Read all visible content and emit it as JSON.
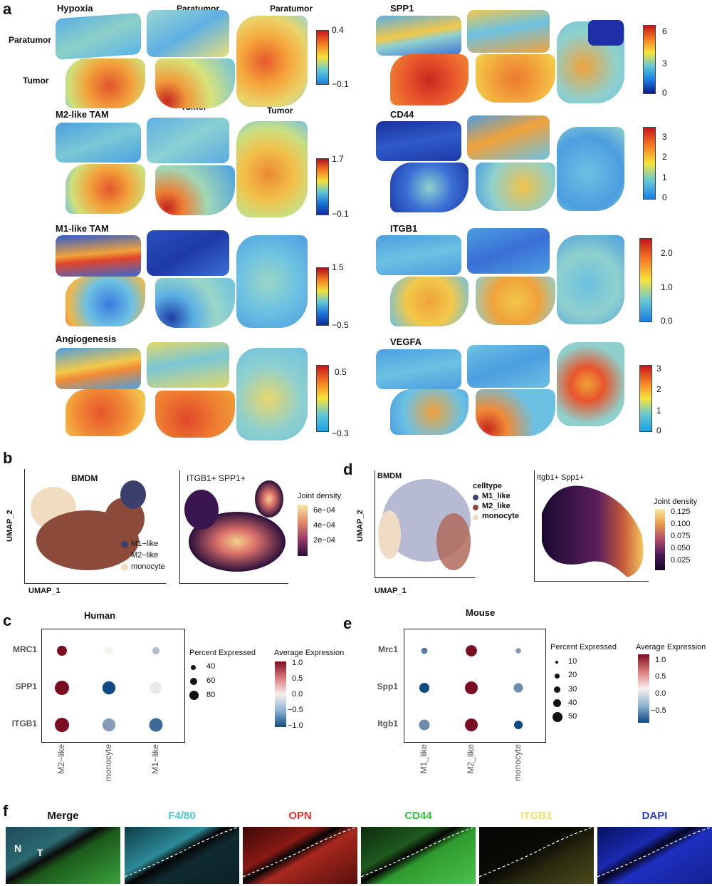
{
  "figure": {
    "panel_labels": {
      "a": "a",
      "b": "b",
      "c": "c",
      "d": "d",
      "e": "e",
      "f": "f"
    },
    "panel_a": {
      "region_labels": {
        "paratumor_left": "Paratumor",
        "paratumor_mid": "Paratumor",
        "paratumor_right": "Paratumor",
        "tumor_left": "Tumor",
        "tumor_mid": "Tumor",
        "tumor_right": "Tumor"
      },
      "left_maps": [
        {
          "title": "Hypoxia",
          "ticks": [
            "0.4",
            "−0.1"
          ]
        },
        {
          "title": "M2-like TAM",
          "ticks": [
            "1.7",
            "−0.1"
          ]
        },
        {
          "title": "M1-like TAM",
          "ticks": [
            "1.5",
            "−0.5"
          ]
        },
        {
          "title": "Angiogenesis",
          "ticks": [
            "0.5",
            "−0.3"
          ]
        }
      ],
      "right_maps": [
        {
          "title": "SPP1",
          "ticks": [
            "6",
            "3",
            "0"
          ]
        },
        {
          "title": "CD44",
          "ticks": [
            "3",
            "2",
            "1",
            "0"
          ]
        },
        {
          "title": "ITGB1",
          "ticks": [
            "2.0",
            "1.0",
            "0.0"
          ]
        },
        {
          "title": "VEGFA",
          "ticks": [
            "3",
            "2",
            "1",
            "0"
          ]
        }
      ]
    },
    "panel_b": {
      "umap_title": "BMDM",
      "x_label": "UMAP_1",
      "y_label": "UMAP_2",
      "legend": [
        "M1−like",
        "M2−like",
        "monocyte"
      ],
      "legend_colors": [
        "#3c3f6b",
        "#8b4a3a",
        "#f2dcc0"
      ],
      "density_title": "ITGB1+ SPP1+",
      "density_legend_title": "Joint density",
      "density_ticks": [
        "6e−04",
        "4e−04",
        "2e−04"
      ]
    },
    "panel_d": {
      "umap_title": "BMDM",
      "legend_title": "celltype",
      "x_label": "UMAP_1",
      "y_label": "UMAP_2",
      "legend": [
        "M1_like",
        "M2_like",
        "monocyte"
      ],
      "density_title": "Itgb1+ Spp1+",
      "density_legend_title": "Joint density",
      "density_ticks": [
        "0.125",
        "0.100",
        "0.075",
        "0.050",
        "0.025"
      ]
    },
    "panel_c": {
      "title": "Human",
      "pct_title": "Percent Expressed",
      "pct_ticks": [
        "40",
        "60",
        "80"
      ],
      "avg_title": "Average Expression",
      "avg_ticks": [
        "1.0",
        "0.5",
        "0.0",
        "−0.5",
        "−1.0"
      ]
    },
    "panel_e": {
      "title": "Mouse",
      "pct_title": "Percent Expressed",
      "pct_ticks": [
        "10",
        "20",
        "30",
        "40",
        "50"
      ],
      "avg_title": "Average Expression",
      "avg_ticks": [
        "1.0",
        "0.5",
        "0.0",
        "−0.5"
      ]
    },
    "panel_f": {
      "channels": [
        {
          "label": "Merge",
          "color": "#111111"
        },
        {
          "label": "F4/80",
          "color": "#4fc6d4"
        },
        {
          "label": "OPN",
          "color": "#e0352b"
        },
        {
          "label": "CD44",
          "color": "#33c23a"
        },
        {
          "label": "ITGB1",
          "color": "#e8e46a"
        },
        {
          "label": "DAPI",
          "color": "#2a3fc9"
        }
      ],
      "region_marks": [
        "N",
        "T"
      ]
    }
  },
  "chart_data": [
    {
      "type": "scatter",
      "subtype": "dotplot",
      "title": "Human",
      "categories": [
        "M2−like",
        "monocyte",
        "M1−like"
      ],
      "genes": [
        "MRC1",
        "SPP1",
        "ITGB1"
      ],
      "percent_expressed": [
        [
          35,
          20,
          15
        ],
        [
          85,
          70,
          55
        ],
        [
          85,
          70,
          75
        ]
      ],
      "average_expression": [
        [
          1.0,
          0.0,
          -0.3
        ],
        [
          1.0,
          -1.0,
          -0.05
        ],
        [
          1.2,
          -0.5,
          -0.8
        ]
      ],
      "size_legend": [
        40,
        60,
        80
      ],
      "color_range": [
        -1.0,
        1.0
      ]
    },
    {
      "type": "scatter",
      "subtype": "dotplot",
      "title": "Mouse",
      "categories": [
        "M1_like",
        "M2_like",
        "monocyte"
      ],
      "genes": [
        "Mrc1",
        "Spp1",
        "Itgb1"
      ],
      "percent_expressed": [
        [
          8,
          40,
          5
        ],
        [
          30,
          55,
          25
        ],
        [
          35,
          55,
          20
        ]
      ],
      "average_expression": [
        [
          -0.5,
          1.2,
          -0.3
        ],
        [
          -0.9,
          1.2,
          -0.4
        ],
        [
          -0.4,
          1.2,
          -1.0
        ]
      ],
      "size_legend": [
        10,
        20,
        30,
        40,
        50
      ],
      "color_range": [
        -0.8,
        1.2
      ]
    }
  ]
}
